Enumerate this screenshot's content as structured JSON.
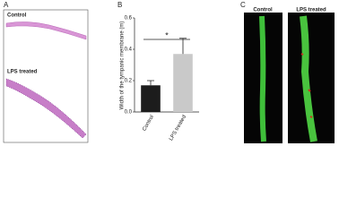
{
  "panel_a": {
    "label": "A",
    "captions": [
      "Control",
      "LPS treated"
    ]
  },
  "panel_c": {
    "label": "C",
    "captions": [
      "Control",
      "LPS treated"
    ]
  },
  "chart_data": {
    "type": "bar",
    "panel_label": "B",
    "ylabel": "Width of the tympanic membrane (m)",
    "categories": [
      "Control",
      "LPS treated"
    ],
    "values": [
      0.17,
      0.37
    ],
    "errors": [
      0.03,
      0.1
    ],
    "colors": [
      "#1c1c1c",
      "#c9c9c9"
    ],
    "ylim": [
      0,
      0.6
    ],
    "yticks": [
      {
        "value": 0,
        "label": "0.0"
      },
      0.2,
      0.4,
      0.6
    ],
    "annotation": "*"
  }
}
